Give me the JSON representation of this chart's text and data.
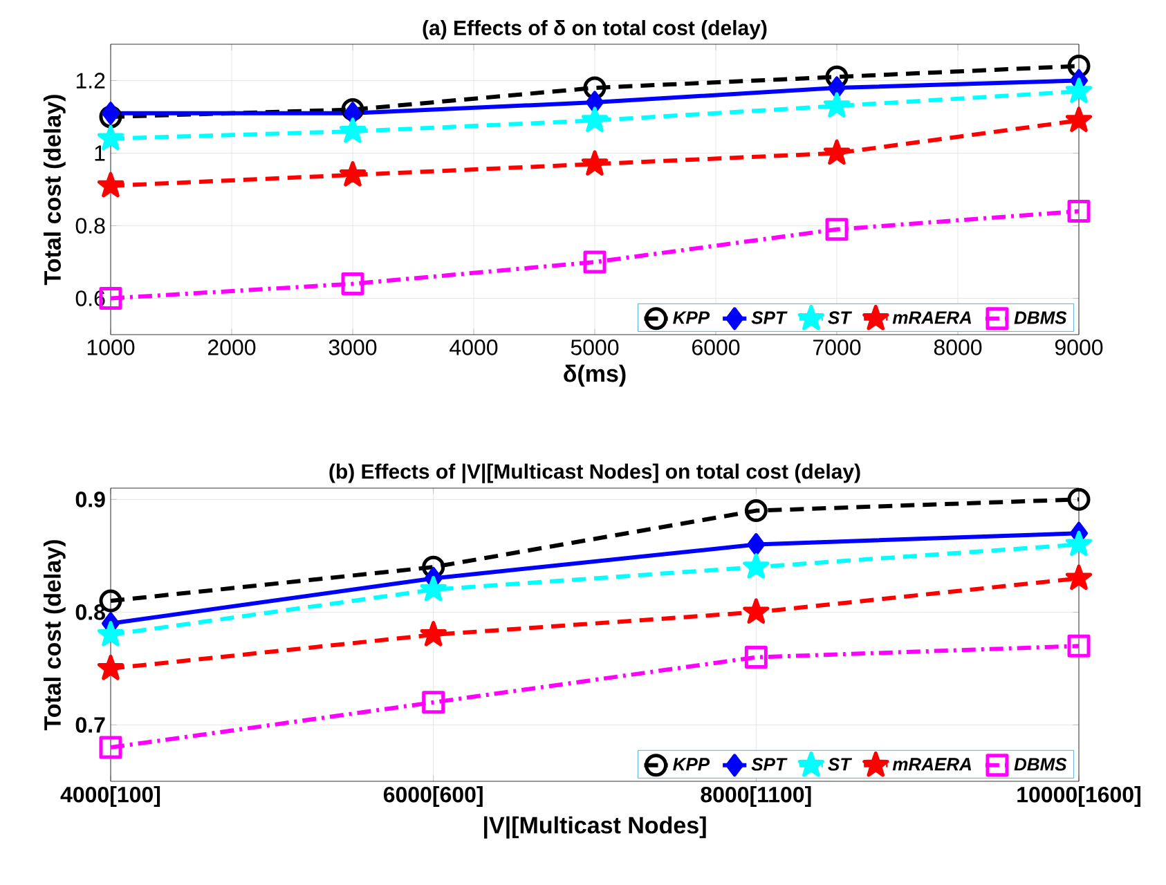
{
  "chart_data": [
    {
      "type": "line",
      "title": "(a) Effects of δ on total cost (delay)",
      "xlabel": "δ(ms)",
      "ylabel": "Total cost (delay)",
      "x": [
        1000,
        3000,
        5000,
        7000,
        9000
      ],
      "series": [
        {
          "name": "KPP",
          "color": "#000000",
          "marker": "circle",
          "line_style": "dashed",
          "values": [
            1.1,
            1.12,
            1.18,
            1.21,
            1.24
          ]
        },
        {
          "name": "SPT",
          "color": "#0000ff",
          "marker": "diamond",
          "line_style": "solid",
          "values": [
            1.11,
            1.11,
            1.14,
            1.18,
            1.2
          ]
        },
        {
          "name": "ST",
          "color": "#00ffff",
          "marker": "star",
          "line_style": "dashed",
          "values": [
            1.04,
            1.06,
            1.09,
            1.13,
            1.17
          ]
        },
        {
          "name": "mRAERA",
          "color": "#ff0000",
          "marker": "star",
          "line_style": "dashed",
          "values": [
            0.91,
            0.94,
            0.97,
            1.0,
            1.09
          ]
        },
        {
          "name": "DBMS",
          "color": "#ff00ff",
          "marker": "square",
          "line_style": "dashdot",
          "values": [
            0.6,
            0.64,
            0.7,
            0.79,
            0.84
          ]
        }
      ],
      "xlim": [
        1000,
        9000
      ],
      "xticks": [
        1000,
        2000,
        3000,
        4000,
        5000,
        6000,
        7000,
        8000,
        9000
      ],
      "ylim": [
        0.5,
        1.3
      ],
      "yticks": [
        0.6,
        0.8,
        1,
        1.2
      ],
      "grid": true,
      "legend": "bottom right"
    },
    {
      "type": "line",
      "title": "(b) Effects of |V|[Multicast Nodes] on total cost (delay)",
      "xlabel": "|V|[Multicast Nodes]",
      "ylabel": "Total cost (delay)",
      "categories": [
        "4000[100]",
        "6000[600]",
        "8000[1100]",
        "10000[1600]"
      ],
      "series": [
        {
          "name": "KPP",
          "color": "#000000",
          "marker": "circle",
          "line_style": "dashed",
          "values": [
            0.81,
            0.84,
            0.89,
            0.9
          ]
        },
        {
          "name": "SPT",
          "color": "#0000ff",
          "marker": "diamond",
          "line_style": "solid",
          "values": [
            0.79,
            0.83,
            0.86,
            0.87
          ]
        },
        {
          "name": "ST",
          "color": "#00ffff",
          "marker": "star",
          "line_style": "dashed",
          "values": [
            0.78,
            0.82,
            0.84,
            0.86
          ]
        },
        {
          "name": "mRAERA",
          "color": "#ff0000",
          "marker": "star",
          "line_style": "dashed",
          "values": [
            0.75,
            0.78,
            0.8,
            0.83
          ]
        },
        {
          "name": "DBMS",
          "color": "#ff00ff",
          "marker": "square",
          "line_style": "dashdot",
          "values": [
            0.68,
            0.72,
            0.76,
            0.77
          ]
        }
      ],
      "ylim": [
        0.65,
        0.91
      ],
      "yticks": [
        0.7,
        0.8,
        0.9
      ],
      "grid": true,
      "legend": "bottom right"
    }
  ]
}
